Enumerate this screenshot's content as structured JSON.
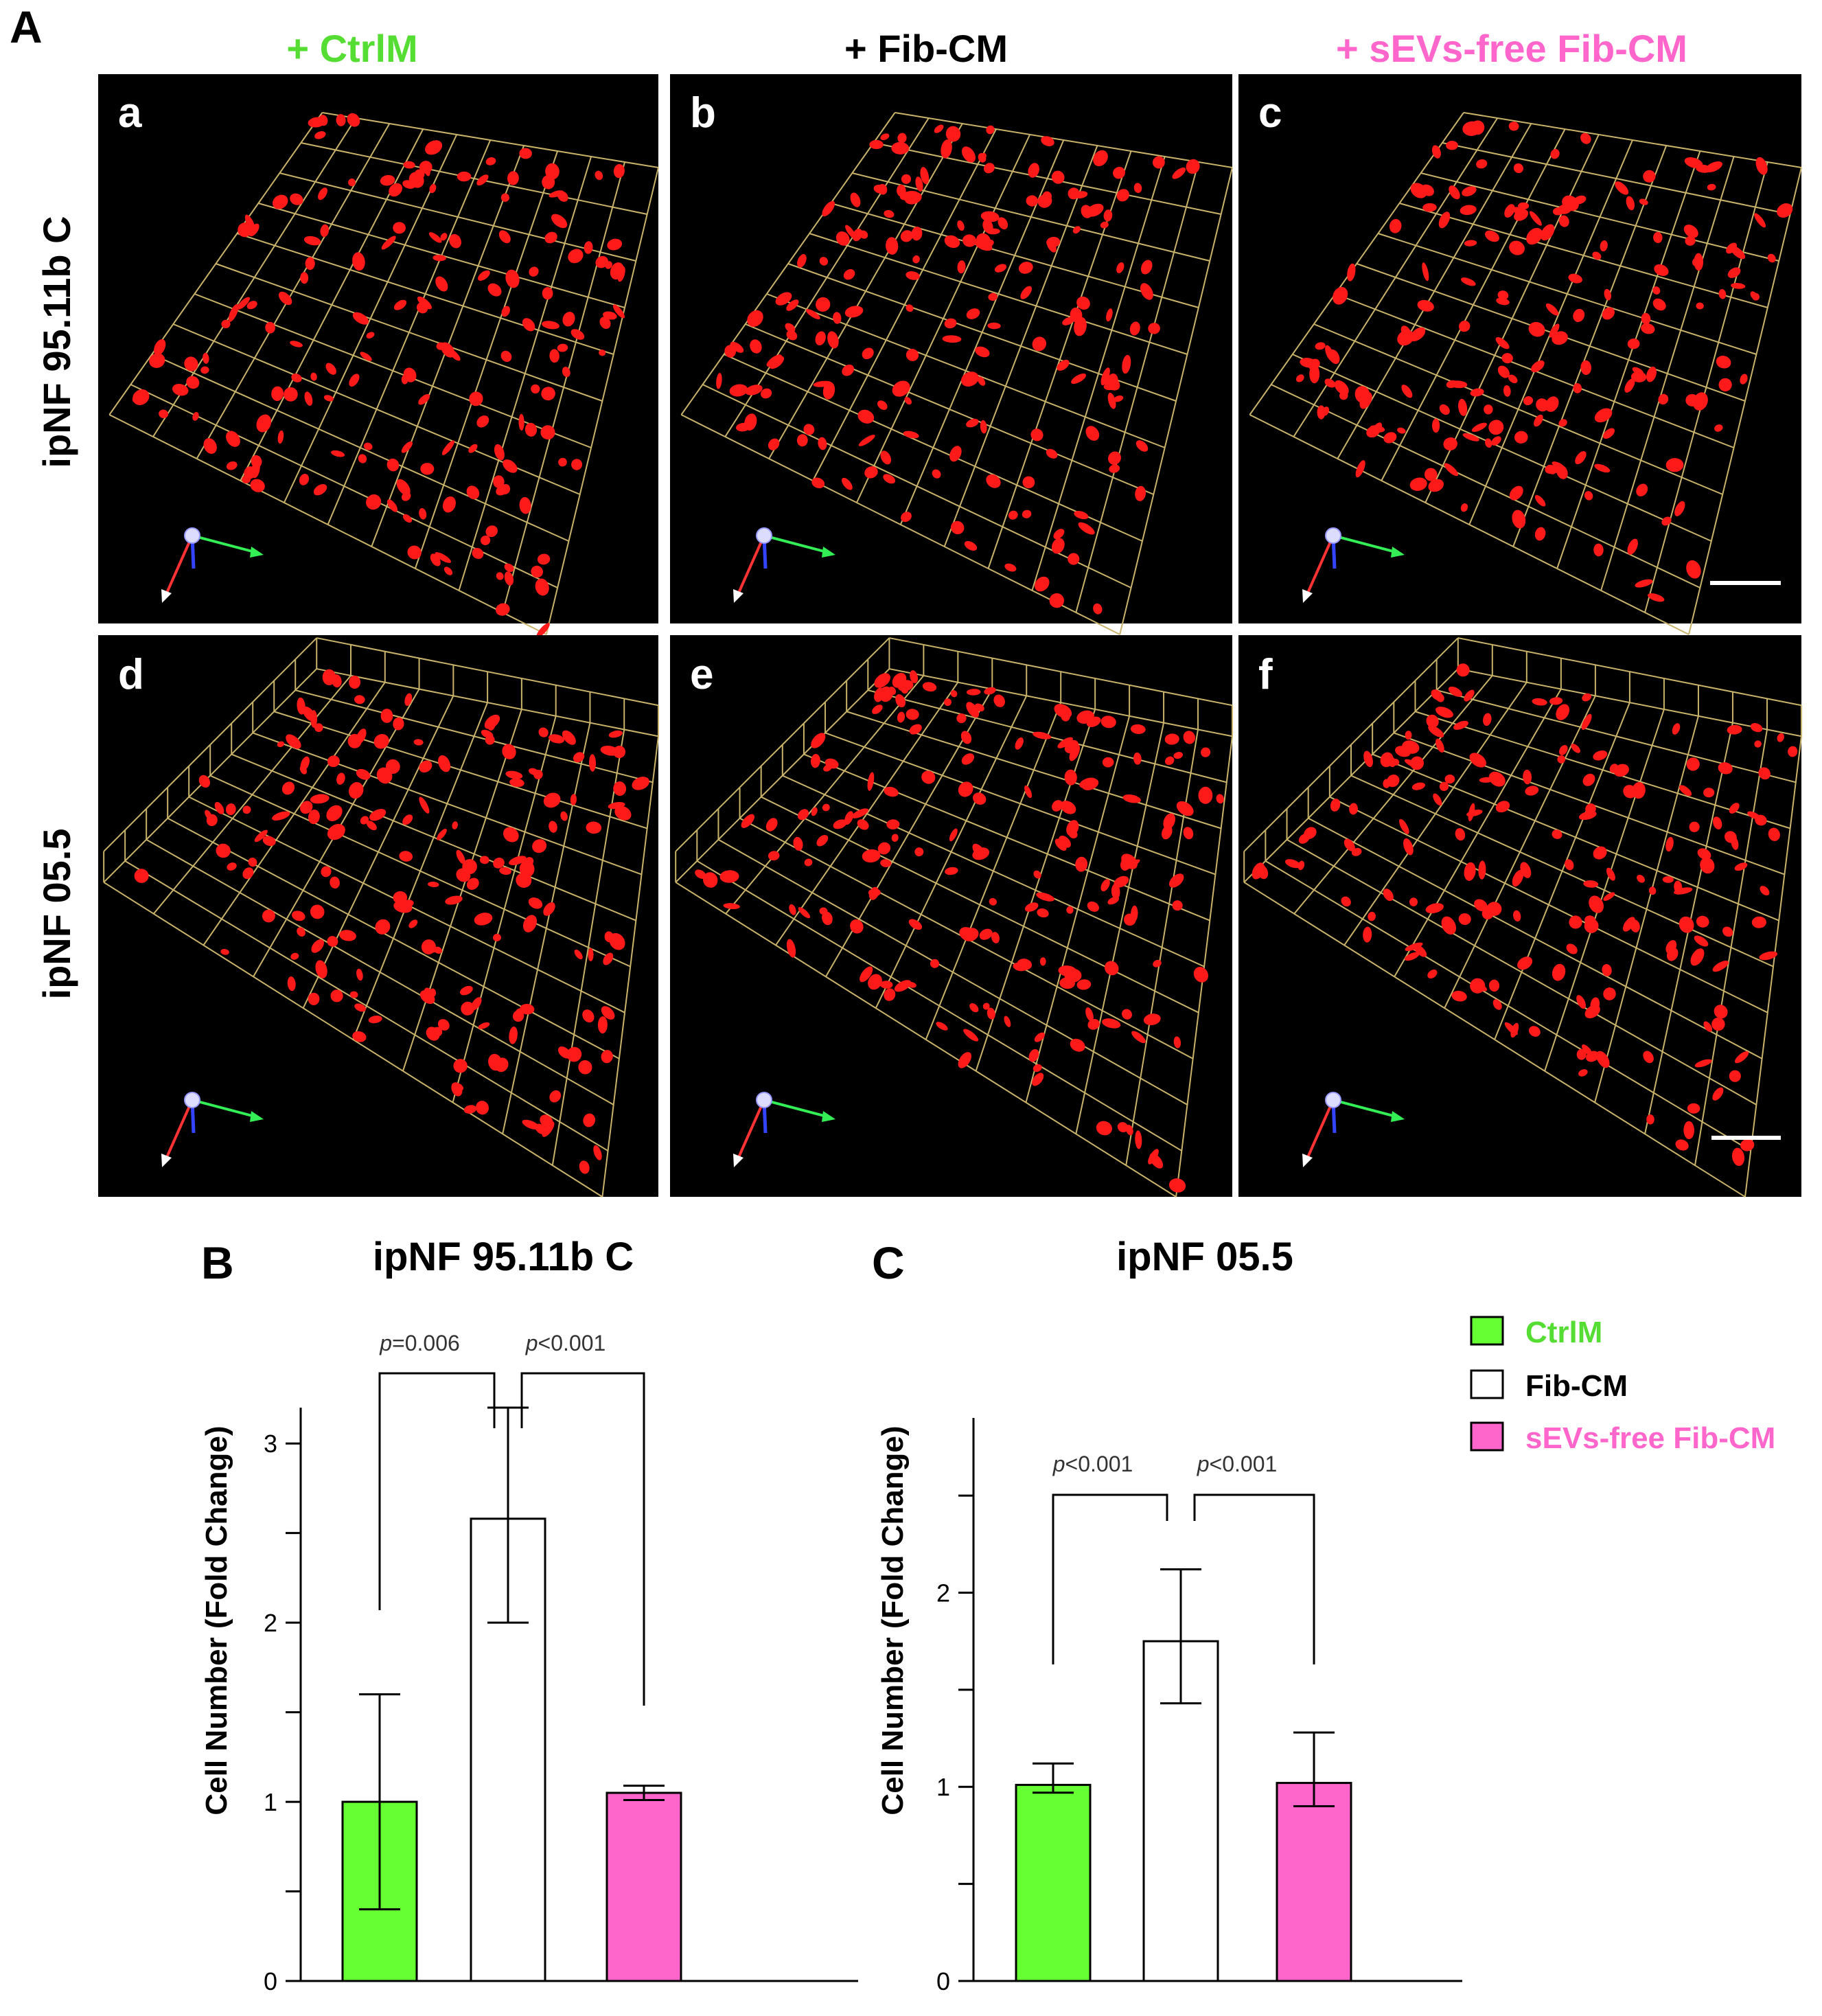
{
  "figure": {
    "panel_A_label": "A",
    "panel_B_label": "B",
    "panel_C_label": "C",
    "columns": [
      {
        "label": "+ CtrlM",
        "color": "#55dd33"
      },
      {
        "label": "+ Fib-CM",
        "color": "#000000"
      },
      {
        "label": "+ sEVs-free Fib-CM",
        "color": "#ff66cc"
      }
    ],
    "rows": [
      "ipNF 95.11b C",
      "ipNF 05.5"
    ],
    "subpanels": [
      "a",
      "b",
      "c",
      "d",
      "e",
      "f"
    ],
    "legend": [
      {
        "label": "CtrlM",
        "color": "#66ff33"
      },
      {
        "label": "Fib-CM",
        "color": "#ffffff"
      },
      {
        "label": "sEVs-free Fib-CM",
        "color": "#ff66cc"
      }
    ]
  },
  "chart_data": [
    {
      "type": "bar",
      "title": "ipNF 95.11b C",
      "ylabel": "Cell Number (Fold Change)",
      "xlabel": "",
      "categories": [
        "CtrlM",
        "Fib-CM",
        "sEVs-free Fib-CM"
      ],
      "values": [
        1.0,
        2.58,
        1.05
      ],
      "error_low": [
        0.4,
        2.0,
        1.01
      ],
      "error_high": [
        1.6,
        3.2,
        1.09
      ],
      "colors": [
        "#66ff33",
        "#ffffff",
        "#ff66cc"
      ],
      "ylim": [
        0,
        3.2
      ],
      "yticks": [
        0,
        1,
        2,
        3
      ],
      "comparisons": [
        {
          "from": 0,
          "to": 1,
          "label_italic": "p",
          "label_rest": "=0.006"
        },
        {
          "from": 1,
          "to": 2,
          "label_italic": "p",
          "label_rest": "<0.001"
        }
      ]
    },
    {
      "type": "bar",
      "title": "ipNF 05.5",
      "ylabel": "Cell Number (Fold Change)",
      "xlabel": "",
      "categories": [
        "CtrlM",
        "Fib-CM",
        "sEVs-free Fib-CM"
      ],
      "values": [
        1.01,
        1.75,
        1.02
      ],
      "error_low": [
        0.97,
        1.43,
        0.9
      ],
      "error_high": [
        1.12,
        2.12,
        1.28
      ],
      "colors": [
        "#66ff33",
        "#ffffff",
        "#ff66cc"
      ],
      "ylim": [
        0,
        2.9
      ],
      "yticks": [
        0,
        1,
        2
      ],
      "comparisons": [
        {
          "from": 0,
          "to": 1,
          "label_italic": "p",
          "label_rest": "<0.001"
        },
        {
          "from": 1,
          "to": 2,
          "label_italic": "p",
          "label_rest": "<0.001"
        }
      ]
    }
  ]
}
